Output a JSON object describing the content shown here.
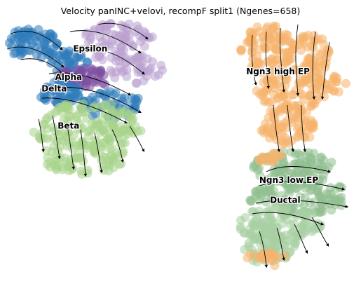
{
  "chart_data": {
    "type": "scatter",
    "title": "Velocity panINC+velovi, recompF split1 (Ngenes=658)",
    "xlabel": "",
    "ylabel": "",
    "axes": "off",
    "grid": false,
    "overlay": "velocity streamlines",
    "clusters": [
      {
        "name": "Epsilon",
        "color": "#b9a0d0",
        "label_x": 0.25,
        "label_y": 0.82
      },
      {
        "name": "Alpha",
        "color": "#7b4ea0",
        "label_x": 0.19,
        "label_y": 0.72
      },
      {
        "name": "Delta",
        "color": "#2f7bbc",
        "label_x": 0.15,
        "label_y": 0.68
      },
      {
        "name": "Beta",
        "color": "#a8d48a",
        "label_x": 0.19,
        "label_y": 0.55
      },
      {
        "name": "Ngn3 high EP",
        "color": "#f6b26b",
        "label_x": 0.77,
        "label_y": 0.74
      },
      {
        "name": "Ngn3 low EP",
        "color": "#8fbf8f",
        "label_x": 0.8,
        "label_y": 0.36
      },
      {
        "name": "Ductal",
        "color": "#a7cfa3",
        "label_x": 0.79,
        "label_y": 0.29
      }
    ]
  }
}
